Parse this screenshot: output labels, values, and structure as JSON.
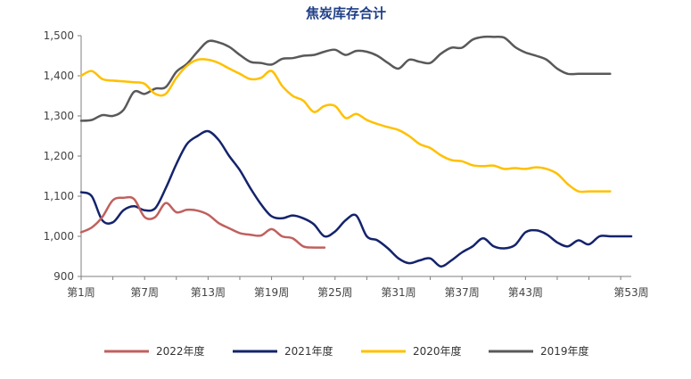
{
  "chart_data": {
    "type": "line",
    "title": "焦炭库存合计",
    "xlabel": "",
    "ylabel": "",
    "ylim": [
      900,
      1500
    ],
    "yticks": [
      900,
      1000,
      1100,
      1200,
      1300,
      1400,
      1500
    ],
    "ytick_labels": [
      "900",
      "1,000",
      "1,100",
      "1,200",
      "1,300",
      "1,400",
      "1,500"
    ],
    "x_range": [
      1,
      53
    ],
    "xticks": [
      1,
      7,
      13,
      19,
      25,
      31,
      37,
      43,
      53
    ],
    "xtick_labels": [
      "第1周",
      "第7周",
      "第13周",
      "第19周",
      "第25周",
      "第31周",
      "第37周",
      "第43周",
      "第53周"
    ],
    "legend_position": "bottom",
    "grid": false,
    "series": [
      {
        "name": "2022年度",
        "color": "#c0605e",
        "x": [
          1,
          2,
          3,
          4,
          5,
          6,
          7,
          8,
          9,
          10,
          11,
          12,
          13,
          14,
          15,
          16,
          17,
          18,
          19,
          20,
          21,
          22,
          23,
          24
        ],
        "values": [
          1010,
          1022,
          1048,
          1090,
          1096,
          1093,
          1048,
          1048,
          1083,
          1060,
          1066,
          1064,
          1054,
          1033,
          1020,
          1008,
          1004,
          1002,
          1018,
          1000,
          995,
          975,
          972,
          972
        ]
      },
      {
        "name": "2021年度",
        "color": "#14236b",
        "x": [
          1,
          2,
          3,
          4,
          5,
          6,
          7,
          8,
          9,
          10,
          11,
          12,
          13,
          14,
          15,
          16,
          17,
          18,
          19,
          20,
          21,
          22,
          23,
          24,
          25,
          26,
          27,
          28,
          29,
          30,
          31,
          32,
          33,
          34,
          35,
          36,
          37,
          38,
          39,
          40,
          41,
          42,
          43,
          44,
          45,
          46,
          47,
          48,
          49,
          50,
          51,
          52,
          53
        ],
        "values": [
          1110,
          1100,
          1040,
          1035,
          1065,
          1075,
          1065,
          1070,
          1120,
          1180,
          1230,
          1250,
          1262,
          1240,
          1200,
          1165,
          1120,
          1080,
          1050,
          1045,
          1052,
          1045,
          1030,
          1000,
          1012,
          1040,
          1052,
          1000,
          990,
          970,
          945,
          933,
          940,
          945,
          925,
          940,
          960,
          975,
          995,
          975,
          970,
          978,
          1010,
          1015,
          1005,
          985,
          975,
          990,
          980,
          1000,
          1000,
          1000,
          1000
        ]
      },
      {
        "name": "2020年度",
        "color": "#ffc000",
        "x": [
          1,
          2,
          3,
          4,
          5,
          6,
          7,
          8,
          9,
          10,
          11,
          12,
          13,
          14,
          15,
          16,
          17,
          18,
          19,
          20,
          21,
          22,
          23,
          24,
          25,
          26,
          27,
          28,
          29,
          30,
          31,
          32,
          33,
          34,
          35,
          36,
          37,
          38,
          39,
          40,
          41,
          42,
          43,
          44,
          45,
          46,
          47,
          48,
          49,
          50,
          51
        ],
        "values": [
          1400,
          1412,
          1392,
          1388,
          1386,
          1384,
          1380,
          1355,
          1355,
          1395,
          1425,
          1440,
          1440,
          1432,
          1418,
          1405,
          1392,
          1395,
          1412,
          1375,
          1350,
          1338,
          1310,
          1325,
          1325,
          1295,
          1305,
          1290,
          1280,
          1272,
          1265,
          1250,
          1230,
          1220,
          1202,
          1190,
          1187,
          1177,
          1175,
          1176,
          1168,
          1170,
          1168,
          1172,
          1168,
          1156,
          1130,
          1112,
          1112,
          1112,
          1112
        ]
      },
      {
        "name": "2019年度",
        "color": "#595959",
        "x": [
          1,
          2,
          3,
          4,
          5,
          6,
          7,
          8,
          9,
          10,
          11,
          12,
          13,
          14,
          15,
          16,
          17,
          18,
          19,
          20,
          21,
          22,
          23,
          24,
          25,
          26,
          27,
          28,
          29,
          30,
          31,
          32,
          33,
          34,
          35,
          36,
          37,
          38,
          39,
          40,
          41,
          42,
          43,
          44,
          45,
          46,
          47,
          48,
          49,
          50,
          51
        ],
        "values": [
          1288,
          1290,
          1302,
          1300,
          1315,
          1360,
          1355,
          1368,
          1372,
          1410,
          1430,
          1460,
          1486,
          1483,
          1472,
          1452,
          1435,
          1432,
          1428,
          1442,
          1444,
          1450,
          1452,
          1460,
          1465,
          1452,
          1462,
          1460,
          1450,
          1432,
          1418,
          1440,
          1435,
          1432,
          1455,
          1470,
          1470,
          1490,
          1497,
          1497,
          1495,
          1472,
          1458,
          1450,
          1440,
          1418,
          1405,
          1405,
          1405,
          1405,
          1405
        ]
      }
    ]
  }
}
